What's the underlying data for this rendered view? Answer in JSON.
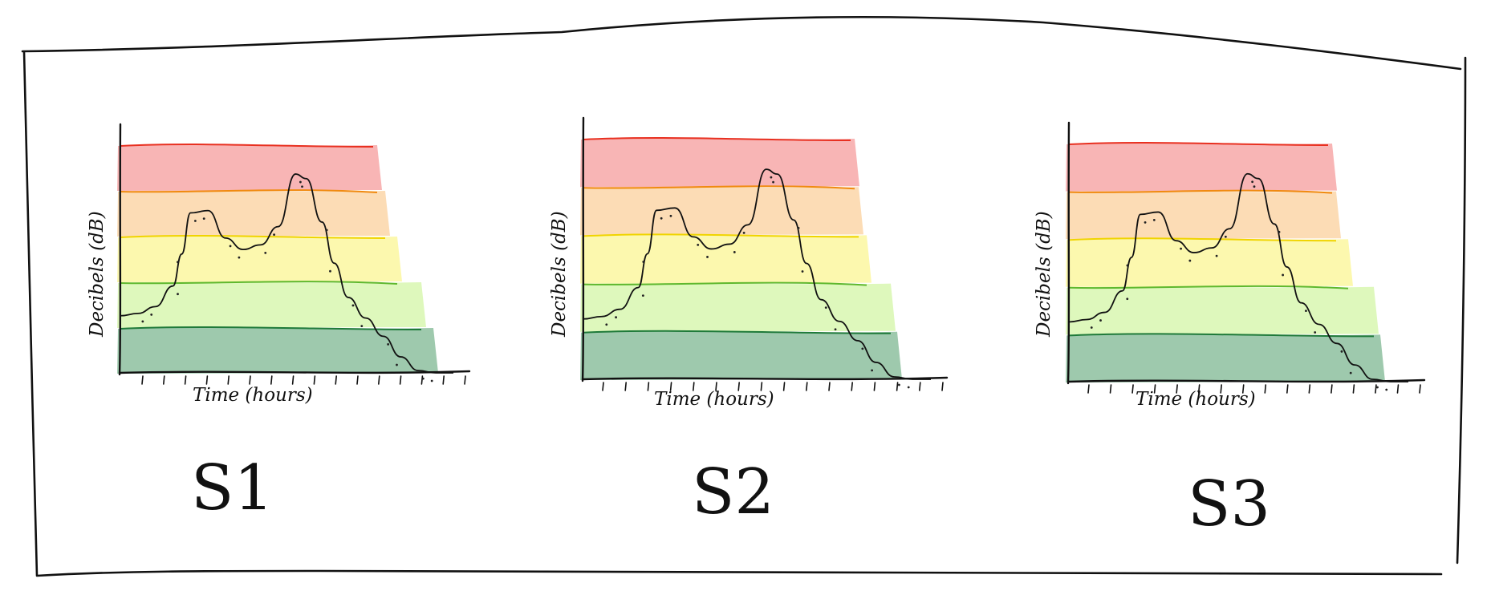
{
  "chart_data": [
    {
      "type": "line",
      "label": "S1",
      "xlabel": "Time (hours)",
      "ylabel": "Decibels (dB)",
      "x": [
        0,
        1,
        2,
        3,
        3.5,
        4,
        5,
        6,
        7,
        8,
        9,
        10,
        10.6,
        11.5,
        12.2,
        13,
        14,
        15,
        16,
        17,
        18,
        19
      ],
      "y": [
        2.5,
        2.6,
        2.9,
        3.8,
        5.2,
        7.0,
        7.1,
        5.9,
        5.4,
        5.6,
        6.4,
        8.7,
        8.5,
        6.6,
        4.8,
        3.3,
        2.4,
        1.6,
        0.7,
        0.1,
        0,
        0
      ],
      "bands": [
        {
          "name": "dark green",
          "color": "#8dbf9f"
        },
        {
          "name": "light green",
          "color": "#d8f7b0"
        },
        {
          "name": "yellow",
          "color": "#fbf7a0"
        },
        {
          "name": "orange",
          "color": "#fbd6a8"
        },
        {
          "name": "red",
          "color": "#f7a8a8"
        }
      ],
      "tick_count": 16
    },
    {
      "type": "line",
      "label": "S2",
      "xlabel": "Time (hours)",
      "ylabel": "Decibels (dB)",
      "x": [
        0,
        1,
        2,
        3,
        3.5,
        4,
        5,
        6,
        7,
        8,
        9,
        10,
        10.6,
        11.5,
        12.2,
        13,
        14,
        15,
        16,
        17,
        18,
        19
      ],
      "y": [
        2.5,
        2.6,
        2.9,
        3.8,
        5.2,
        7.0,
        7.1,
        5.9,
        5.4,
        5.6,
        6.4,
        8.7,
        8.5,
        6.6,
        4.8,
        3.3,
        2.4,
        1.6,
        0.7,
        0.1,
        0,
        0
      ],
      "bands": [
        {
          "name": "dark green",
          "color": "#8dbf9f"
        },
        {
          "name": "light green",
          "color": "#d8f7b0"
        },
        {
          "name": "yellow",
          "color": "#fbf7a0"
        },
        {
          "name": "orange",
          "color": "#fbd6a8"
        },
        {
          "name": "red",
          "color": "#f7a8a8"
        }
      ],
      "tick_count": 16
    },
    {
      "type": "line",
      "label": "S3",
      "xlabel": "Time (hours)",
      "ylabel": "Decibels (dB)",
      "x": [
        0,
        1,
        2,
        3,
        3.5,
        4,
        5,
        6,
        7,
        8,
        9,
        10,
        10.6,
        11.5,
        12.2,
        13,
        14,
        15,
        16,
        17,
        18,
        19
      ],
      "y": [
        2.5,
        2.6,
        2.9,
        3.8,
        5.2,
        7.0,
        7.1,
        5.9,
        5.4,
        5.6,
        6.4,
        8.7,
        8.5,
        6.6,
        4.8,
        3.3,
        2.4,
        1.6,
        0.7,
        0.1,
        0,
        0
      ],
      "bands": [
        {
          "name": "dark green",
          "color": "#8dbf9f"
        },
        {
          "name": "light green",
          "color": "#d8f7b0"
        },
        {
          "name": "yellow",
          "color": "#fbf7a0"
        },
        {
          "name": "orange",
          "color": "#fbd6a8"
        },
        {
          "name": "red",
          "color": "#f7a8a8"
        }
      ],
      "tick_count": 16
    }
  ],
  "band_line_colors": [
    "#1f7a3a",
    "#5fb82e",
    "#f0d400",
    "#f08a10",
    "#e83020"
  ]
}
